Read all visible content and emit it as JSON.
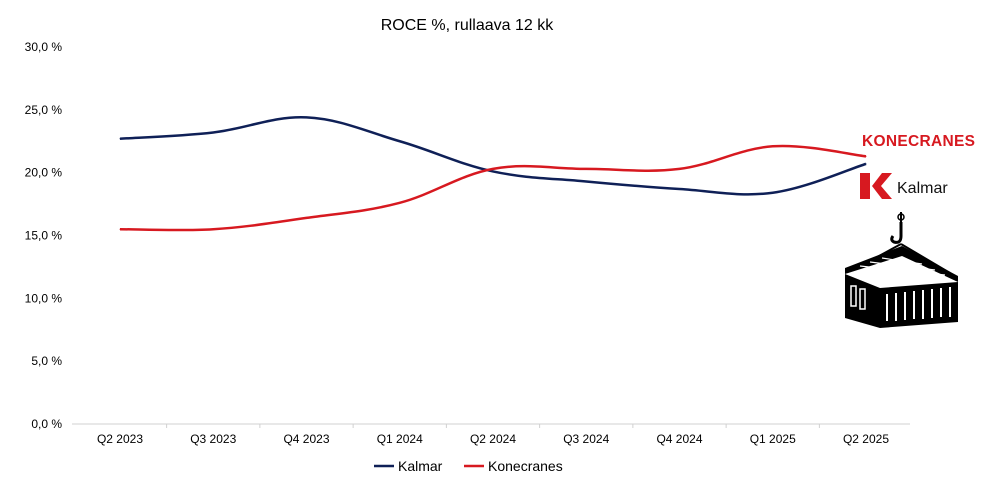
{
  "chart_data": {
    "type": "line",
    "title": "ROCE %, rullaava 12 kk",
    "categories": [
      "Q2 2023",
      "Q3 2023",
      "Q4 2023",
      "Q1 2024",
      "Q2 2024",
      "Q3 2024",
      "Q4 2024",
      "Q1 2025",
      "Q2 2025"
    ],
    "series": [
      {
        "name": "Kalmar",
        "color": "#0f2057",
        "values": [
          22.7,
          23.2,
          24.4,
          22.5,
          20.1,
          19.3,
          18.7,
          18.4,
          20.7
        ]
      },
      {
        "name": "Konecranes",
        "color": "#d71920",
        "values": [
          15.5,
          15.5,
          16.4,
          17.6,
          20.3,
          20.3,
          20.3,
          22.1,
          21.3
        ]
      }
    ],
    "ylim": [
      0,
      30
    ],
    "yticks": [
      0,
      5,
      10,
      15,
      20,
      25,
      30
    ],
    "ytick_labels": [
      "0,0 %",
      "5,0 %",
      "10,0 %",
      "15,0 %",
      "20,0 %",
      "25,0 %",
      "30,0 %"
    ],
    "xlabel": "",
    "ylabel": "",
    "grid": false,
    "legend_position": "bottom-center"
  },
  "logos": {
    "konecranes": "KONECRANES",
    "kalmar": "Kalmar"
  },
  "icons": {
    "container": "shipping-container-on-hook-icon"
  }
}
